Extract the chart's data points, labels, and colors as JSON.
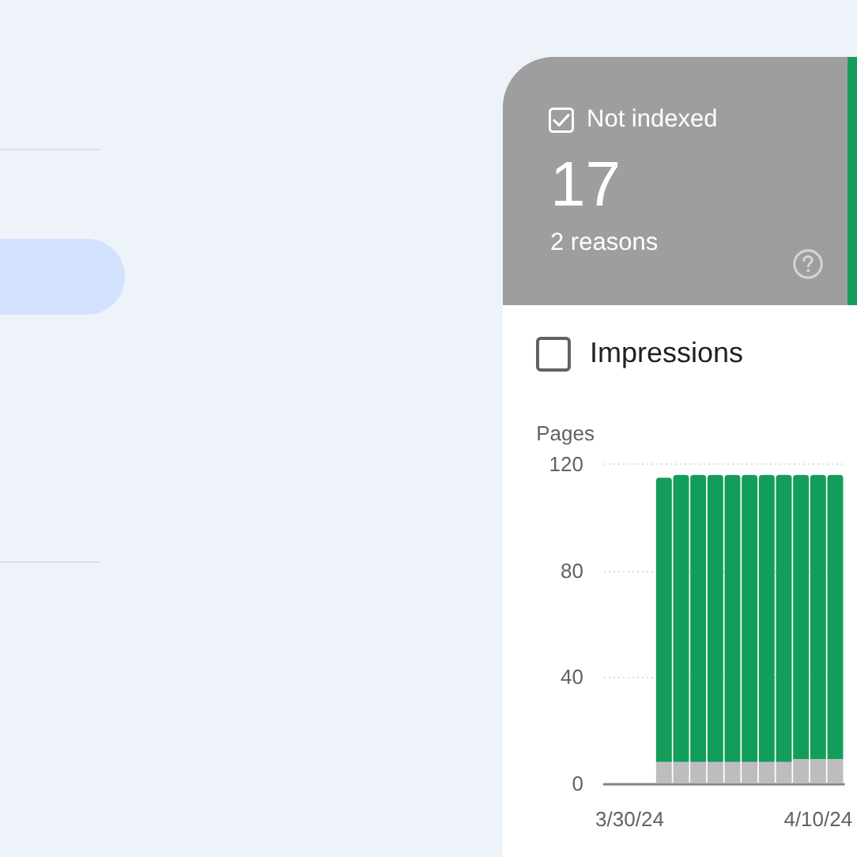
{
  "chart_data": {
    "type": "bar",
    "stacked": true,
    "ylabel": "Pages",
    "categories": [
      null,
      "3/30/24",
      null,
      null,
      null,
      null,
      null,
      null,
      null,
      null,
      null,
      null,
      "4/10/24",
      null
    ],
    "series": [
      {
        "color": "#bdbdbd",
        "values": [
          null,
          null,
          null,
          8,
          8,
          8,
          8,
          8,
          8,
          8,
          8,
          9,
          9,
          9
        ]
      },
      {
        "color": "#129d5a",
        "values": [
          null,
          null,
          null,
          107,
          108,
          108,
          108,
          108,
          108,
          108,
          108,
          107,
          107,
          107
        ]
      }
    ],
    "ylim": [
      0,
      120
    ],
    "yticks": [
      0,
      40,
      80,
      120
    ],
    "grid": "y",
    "annotations": [
      "Not indexed",
      "17",
      "2 reasons",
      "Impressions"
    ]
  }
}
